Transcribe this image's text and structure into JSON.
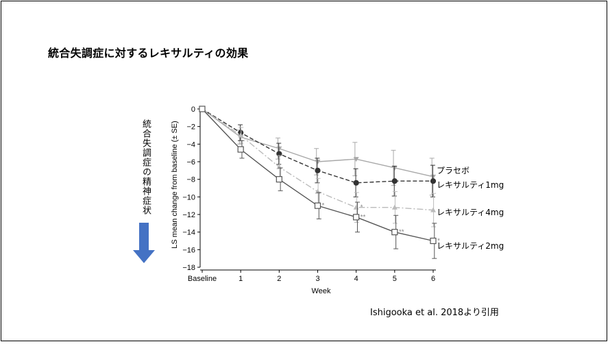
{
  "slide": {
    "title": "統合失調症に対するレキサルティの効果",
    "vertical_label": "統合失調症の精神症状",
    "citation": "Ishigooka et al. 2018より引用",
    "arrow_color": "#4472c4"
  },
  "chart_data": {
    "type": "line",
    "title": "",
    "xlabel": "Week",
    "ylabel": "LS mean change from baseline (± SE)",
    "categories": [
      "Baseline",
      "1",
      "2",
      "3",
      "4",
      "5",
      "6"
    ],
    "ylim": [
      -18,
      0
    ],
    "yticks": [
      0,
      -2,
      -4,
      -6,
      -8,
      -10,
      -12,
      -14,
      -16,
      -18
    ],
    "ytick_labels": [
      "0",
      "−2",
      "−4",
      "−6",
      "−8",
      "−10",
      "−12",
      "−14",
      "−16",
      "−18"
    ],
    "series": [
      {
        "name": "プラセボ",
        "marker": "triangle-down",
        "color": "#a8a8a8",
        "dash": "",
        "values": [
          0,
          -3.2,
          -4.5,
          -6.0,
          -5.7,
          -6.7,
          -7.7
        ],
        "errors": [
          0,
          0.8,
          1.2,
          1.5,
          1.9,
          2.0,
          2.1
        ],
        "sig": [
          "",
          "",
          "",
          "",
          "",
          "",
          ""
        ]
      },
      {
        "name": "レキサルティ1mg",
        "marker": "circle-filled",
        "color": "#333333",
        "dash": "6,3",
        "values": [
          0,
          -2.7,
          -5.1,
          -7.0,
          -8.4,
          -8.2,
          -8.2
        ],
        "errors": [
          0,
          0.9,
          1.2,
          1.4,
          1.6,
          1.7,
          1.8
        ],
        "sig": [
          "",
          "",
          "",
          "",
          "",
          "",
          ""
        ]
      },
      {
        "name": "レキサルティ4mg",
        "marker": "triangle-up",
        "color": "#bbbbbb",
        "dash": "9,3,2,3",
        "values": [
          0,
          -3.0,
          -6.6,
          -9.4,
          -11.2,
          -11.2,
          -11.5
        ],
        "errors": [
          0,
          0.9,
          1.3,
          1.5,
          1.7,
          1.8,
          1.9
        ],
        "sig": [
          "",
          "",
          "",
          "",
          "*",
          "",
          ""
        ]
      },
      {
        "name": "レキサルティ2mg",
        "marker": "square-open",
        "color": "#555555",
        "dash": "",
        "values": [
          0,
          -4.6,
          -8.0,
          -11.0,
          -12.3,
          -14.0,
          -15.0
        ],
        "errors": [
          0,
          1.0,
          1.3,
          1.5,
          1.7,
          1.9,
          2.0
        ],
        "sig": [
          "",
          "",
          "",
          "*",
          "**",
          "**",
          "*"
        ]
      }
    ],
    "legend_labels": [
      "プラセボ",
      "レキサルティ1mg",
      "レキサルティ4mg",
      "レキサルティ2mg"
    ]
  }
}
